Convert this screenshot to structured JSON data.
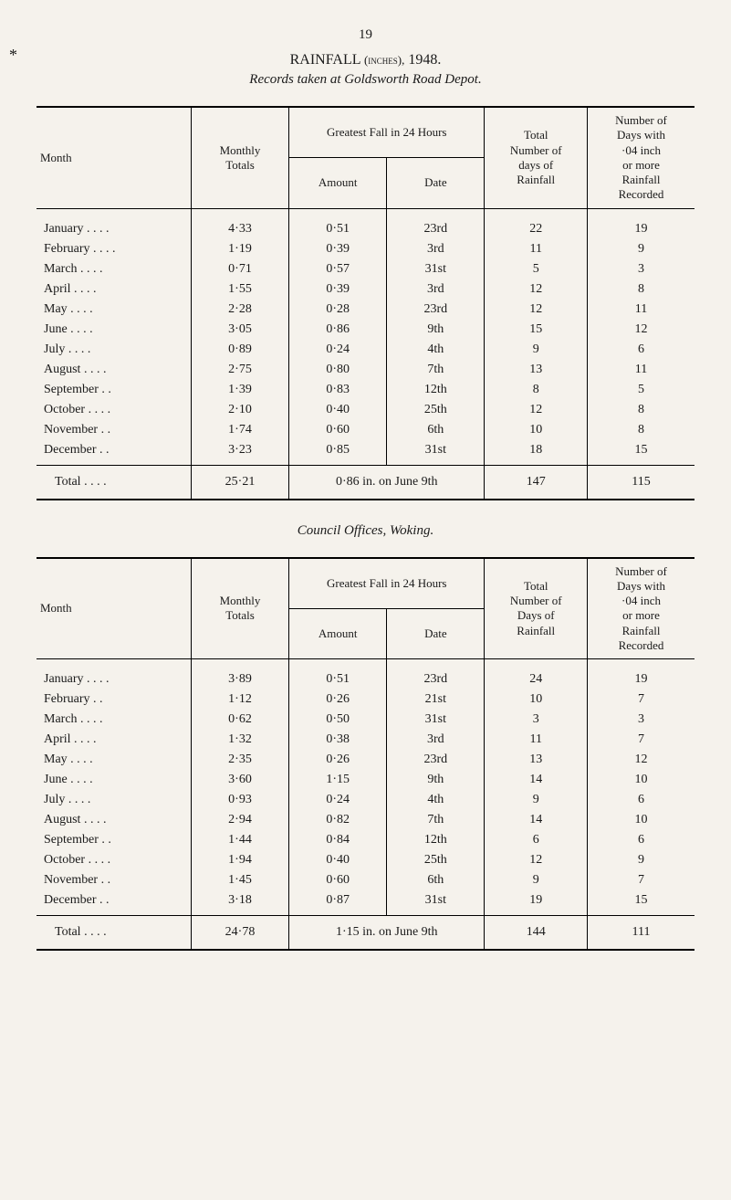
{
  "page_number": "19",
  "marker": "*",
  "title_main": "RAINFALL",
  "title_paren": "(INCHES),",
  "title_year": "1948.",
  "subtitle": "Records taken at Goldsworth Road Depot.",
  "section2_title": "Council Offices, Woking.",
  "headers": {
    "month": "Month",
    "monthly_totals": "Monthly\nTotals",
    "greatest_fall": "Greatest Fall in 24 Hours",
    "amount": "Amount",
    "date": "Date",
    "total_number": "Total\nNumber of\ndays of\nRainfall",
    "total_number2": "Total\nNumber of\nDays of\nRainfall",
    "days_with": "Number of\nDays with\n·04 inch\nor more\nRainfall\nRecorded"
  },
  "table1": {
    "rows": [
      {
        "month": "January",
        "dots": ". .        . .",
        "totals": "4·33",
        "amount": "0·51",
        "date": "23rd",
        "days": "22",
        "rec": "19"
      },
      {
        "month": "February",
        "dots": ". .        . .",
        "totals": "1·19",
        "amount": "0·39",
        "date": "3rd",
        "days": "11",
        "rec": "9"
      },
      {
        "month": "March",
        "dots": "      . .        . .",
        "totals": "0·71",
        "amount": "0·57",
        "date": "31st",
        "days": "5",
        "rec": "3"
      },
      {
        "month": "April",
        "dots": "        . .        . .",
        "totals": "1·55",
        "amount": "0·39",
        "date": "3rd",
        "days": "12",
        "rec": "8"
      },
      {
        "month": "May",
        "dots": "          . .        . .",
        "totals": "2·28",
        "amount": "0·28",
        "date": "23rd",
        "days": "12",
        "rec": "11"
      },
      {
        "month": "June",
        "dots": "          . .        . .",
        "totals": "3·05",
        "amount": "0·86",
        "date": "9th",
        "days": "15",
        "rec": "12"
      },
      {
        "month": "July",
        "dots": "          . .        . .",
        "totals": "0·89",
        "amount": "0·24",
        "date": "4th",
        "days": "9",
        "rec": "6"
      },
      {
        "month": "August",
        "dots": "      . .        . .",
        "totals": "2·75",
        "amount": "0·80",
        "date": "7th",
        "days": "13",
        "rec": "11"
      },
      {
        "month": "September",
        "dots": "              . .",
        "totals": "1·39",
        "amount": "0·83",
        "date": "12th",
        "days": "8",
        "rec": "5"
      },
      {
        "month": "October",
        "dots": "    . .        . .",
        "totals": "2·10",
        "amount": "0·40",
        "date": "25th",
        "days": "12",
        "rec": "8"
      },
      {
        "month": "November",
        "dots": "              . .",
        "totals": "1·74",
        "amount": "0·60",
        "date": "6th",
        "days": "10",
        "rec": "8"
      },
      {
        "month": "December",
        "dots": "              . .",
        "totals": "3·23",
        "amount": "0·85",
        "date": "31st",
        "days": "18",
        "rec": "15"
      }
    ],
    "total": {
      "label": "Total    . .        . .",
      "totals": "25·21",
      "greatest": "0·86 in. on June 9th",
      "days": "147",
      "rec": "115"
    }
  },
  "table2": {
    "rows": [
      {
        "month": "January",
        "dots": "  . .        . .",
        "totals": "3·89",
        "amount": "0·51",
        "date": "23rd",
        "days": "24",
        "rec": "19"
      },
      {
        "month": "February",
        "dots": "              . .",
        "totals": "1·12",
        "amount": "0·26",
        "date": "21st",
        "days": "10",
        "rec": "7"
      },
      {
        "month": "March",
        "dots": "      . .        . .",
        "totals": "0·62",
        "amount": "0·50",
        "date": "31st",
        "days": "3",
        "rec": "3"
      },
      {
        "month": "April",
        "dots": "        . .        . .",
        "totals": "1·32",
        "amount": "0·38",
        "date": "3rd",
        "days": "11",
        "rec": "7"
      },
      {
        "month": "May",
        "dots": "          . .        . .",
        "totals": "2·35",
        "amount": "0·26",
        "date": "23rd",
        "days": "13",
        "rec": "12"
      },
      {
        "month": "June",
        "dots": "          . .        . .",
        "totals": "3·60",
        "amount": "1·15",
        "date": "9th",
        "days": "14",
        "rec": "10"
      },
      {
        "month": "July",
        "dots": "          . .        . .",
        "totals": "0·93",
        "amount": "0·24",
        "date": "4th",
        "days": "9",
        "rec": "6"
      },
      {
        "month": "August",
        "dots": "      . .        . .",
        "totals": "2·94",
        "amount": "0·82",
        "date": "7th",
        "days": "14",
        "rec": "10"
      },
      {
        "month": "September",
        "dots": "              . .",
        "totals": "1·44",
        "amount": "0·84",
        "date": "12th",
        "days": "6",
        "rec": "6"
      },
      {
        "month": "October",
        "dots": "    . .        . .",
        "totals": "1·94",
        "amount": "0·40",
        "date": "25th",
        "days": "12",
        "rec": "9"
      },
      {
        "month": "November",
        "dots": "              . .",
        "totals": "1·45",
        "amount": "0·60",
        "date": "6th",
        "days": "9",
        "rec": "7"
      },
      {
        "month": "December",
        "dots": "              . .",
        "totals": "3·18",
        "amount": "0·87",
        "date": "31st",
        "days": "19",
        "rec": "15"
      }
    ],
    "total": {
      "label": "Total    . .        . .",
      "totals": "24·78",
      "greatest": "1·15 in. on June 9th",
      "days": "144",
      "rec": "111"
    }
  },
  "colors": {
    "background": "#f5f2ec",
    "text": "#1a1a1a",
    "border": "#000000"
  },
  "typography": {
    "body_font": "Georgia, serif",
    "body_size": 14,
    "title_size": 16,
    "header_size": 13
  }
}
